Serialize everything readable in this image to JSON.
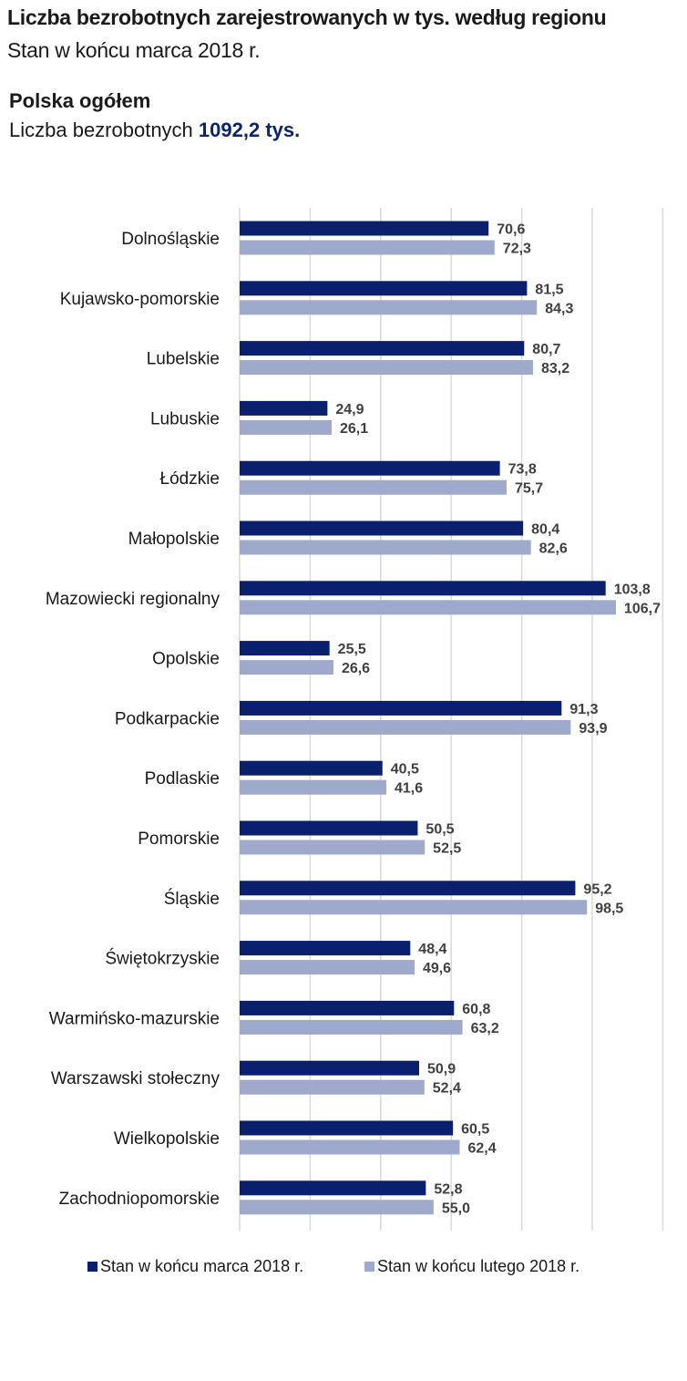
{
  "header": {
    "title": "Liczba bezrobotnych zarejestrowanych w tys. według regionu",
    "subtitle": "Stan w końcu marca 2018 r."
  },
  "total": {
    "heading": "Polska ogółem",
    "label": "Liczba bezrobotnych",
    "value": "1092,2 tys."
  },
  "colors": {
    "series1": "#0a1f6e",
    "series2": "#9ea9cc",
    "grid": "#d9d9d9"
  },
  "chart_data": {
    "type": "bar",
    "orientation": "horizontal",
    "categories": [
      "Dolnośląskie",
      "Kujawsko-pomorskie",
      "Lubelskie",
      "Lubuskie",
      "Łódzkie",
      "Małopolskie",
      "Mazowiecki regionalny",
      "Opolskie",
      "Podkarpackie",
      "Podlaskie",
      "Pomorskie",
      "Śląskie",
      "Świętokrzyskie",
      "Warmińsko-mazurskie",
      "Warszawski stołeczny",
      "Wielkopolskie",
      "Zachodniopomorskie"
    ],
    "series": [
      {
        "name": "Stan w końcu marca 2018 r.",
        "values": [
          70.6,
          81.5,
          80.7,
          24.9,
          73.8,
          80.4,
          103.8,
          25.5,
          91.3,
          40.5,
          50.5,
          95.2,
          48.4,
          60.8,
          50.9,
          60.5,
          52.8
        ],
        "labels": [
          "70,6",
          "81,5",
          "80,7",
          "24,9",
          "73,8",
          "80,4",
          "103,8",
          "25,5",
          "91,3",
          "40,5",
          "50,5",
          "95,2",
          "48,4",
          "60,8",
          "50,9",
          "60,5",
          "52,8"
        ]
      },
      {
        "name": "Stan w końcu lutego 2018 r.",
        "values": [
          72.3,
          84.3,
          83.2,
          26.1,
          75.7,
          82.6,
          106.7,
          26.6,
          93.9,
          41.6,
          52.5,
          98.5,
          49.6,
          63.2,
          52.4,
          62.4,
          55.0
        ],
        "labels": [
          "72,3",
          "84,3",
          "83,2",
          "26,1",
          "75,7",
          "82,6",
          "106,7",
          "26,6",
          "93,9",
          "41,6",
          "52,5",
          "98,5",
          "49,6",
          "63,2",
          "52,4",
          "62,4",
          "55,0"
        ]
      }
    ],
    "xlim": [
      0,
      120
    ],
    "grid": true,
    "legend": "bottom"
  }
}
